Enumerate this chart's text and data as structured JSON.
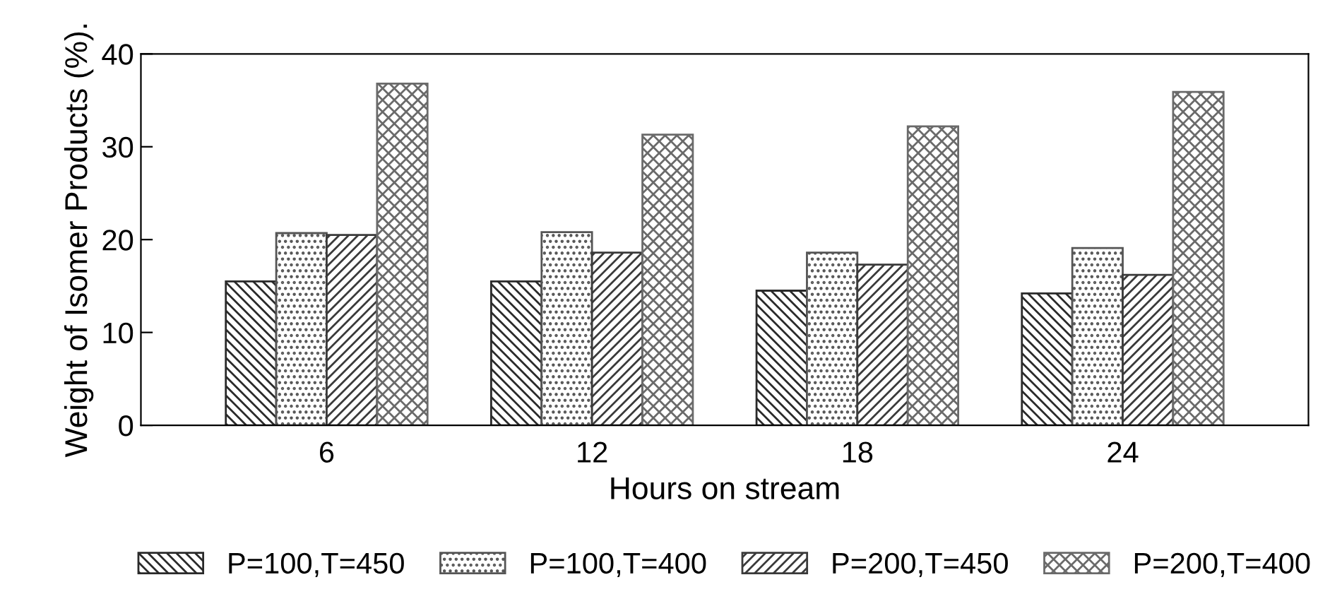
{
  "chart_data": {
    "type": "bar",
    "xlabel": "Hours on stream",
    "ylabel": "Weight of Isomer Products (%).",
    "categories": [
      "6",
      "12",
      "18",
      "24"
    ],
    "series": [
      {
        "name": "P=100,T=450",
        "color": "#2a2a2a",
        "values": [
          15.5,
          15.5,
          14.5,
          14.2
        ]
      },
      {
        "name": "P=100,T=400",
        "color": "#555555",
        "values": [
          20.7,
          20.8,
          18.6,
          19.1
        ]
      },
      {
        "name": "P=200,T=450",
        "color": "#3a3a3a",
        "values": [
          20.5,
          18.6,
          17.3,
          16.2
        ]
      },
      {
        "name": "P=200,T=400",
        "color": "#6a6a6a",
        "values": [
          36.8,
          31.3,
          32.2,
          35.9
        ]
      }
    ],
    "ylim": [
      0,
      40
    ],
    "yticks": [
      0,
      10,
      20,
      30,
      40
    ],
    "grid": false,
    "legend": "bottom"
  }
}
